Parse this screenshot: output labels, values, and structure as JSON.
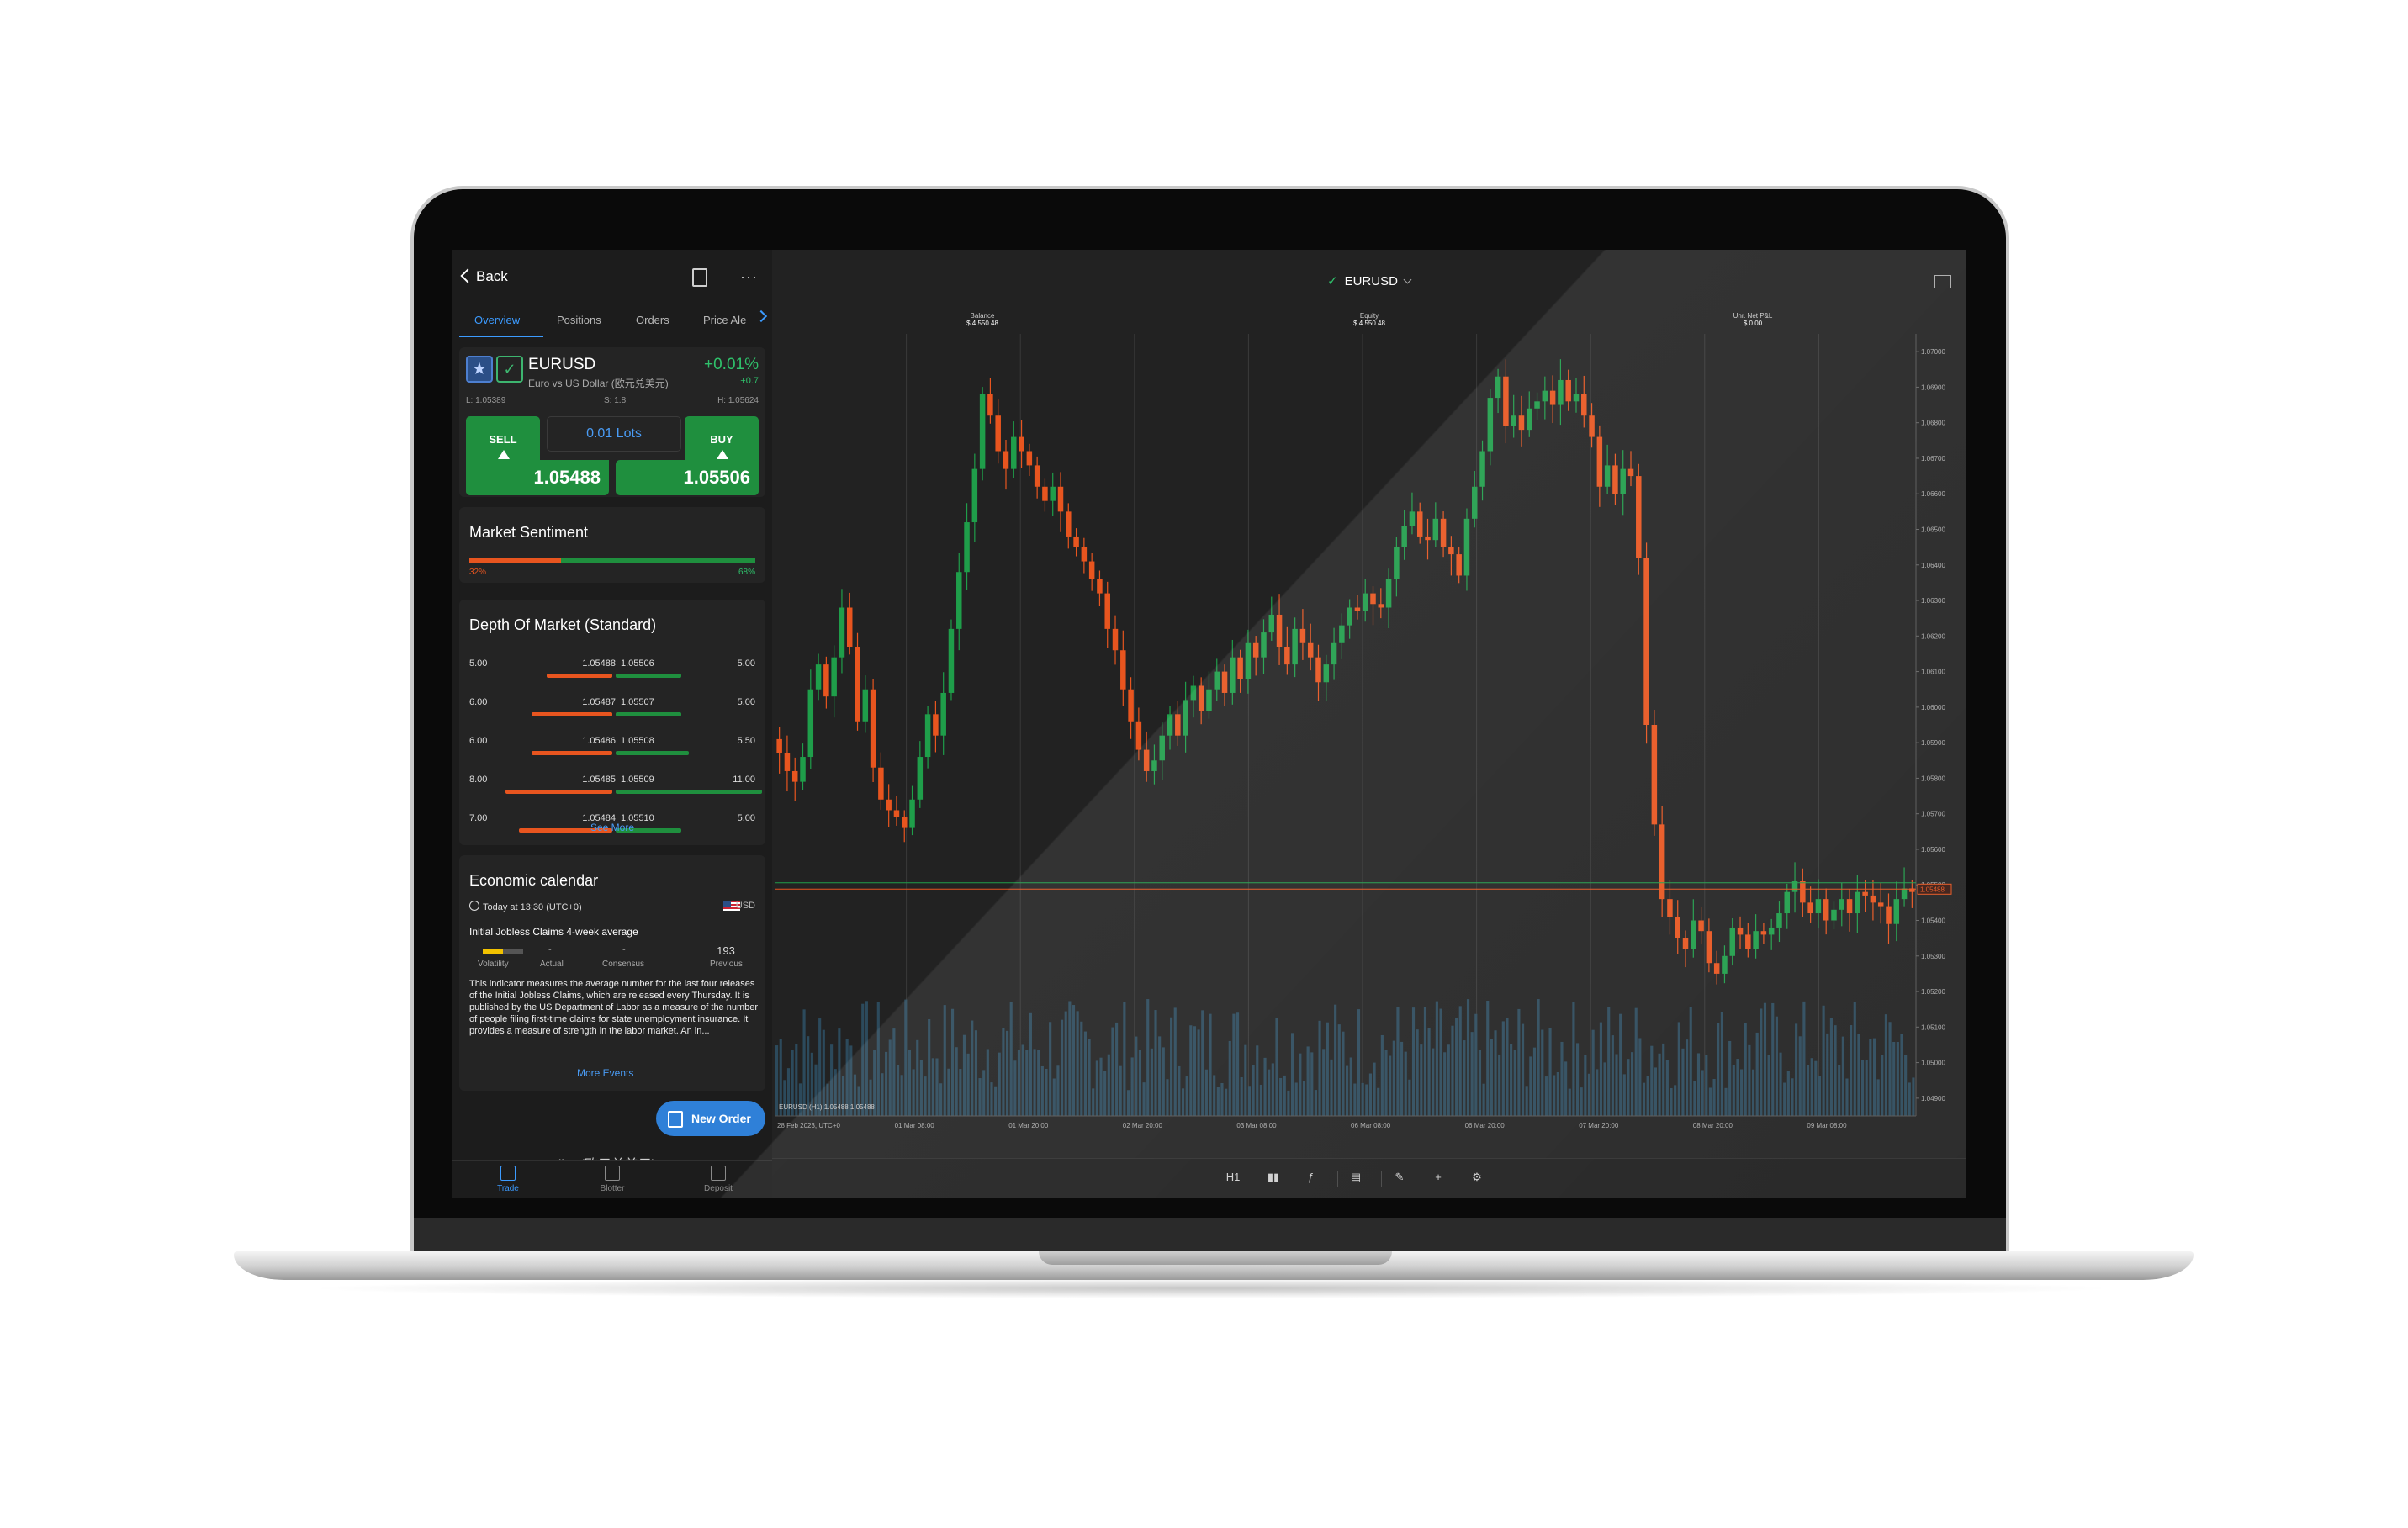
{
  "left": {
    "back_label": "Back",
    "tabs": [
      "Overview",
      "Positions",
      "Orders",
      "Price Ale"
    ],
    "symbol": {
      "name": "EURUSD",
      "description": "Euro vs US Dollar (欧元兑美元)",
      "change_pct": "+0.01%",
      "change_pts": "+0.7",
      "low": "L: 1.05389",
      "spread": "S: 1.8",
      "high": "H: 1.05624"
    },
    "trade": {
      "sell_label": "SELL",
      "buy_label": "BUY",
      "lots": "0.01 Lots",
      "sell_price": "1.05488",
      "buy_price": "1.05506"
    },
    "sentiment": {
      "title": "Market Sentiment",
      "sell_pct_label": "32%",
      "buy_pct_label": "68%",
      "sell_fraction": 0.32
    },
    "depth": {
      "title": "Depth Of Market (Standard)",
      "rows": [
        {
          "bid_qty": "5.00",
          "bid": "1.05488",
          "ask": "1.05506",
          "ask_qty": "5.00",
          "bid_w": 0.45,
          "ask_w": 0.45
        },
        {
          "bid_qty": "6.00",
          "bid": "1.05487",
          "ask": "1.05507",
          "ask_qty": "5.00",
          "bid_w": 0.55,
          "ask_w": 0.45
        },
        {
          "bid_qty": "6.00",
          "bid": "1.05486",
          "ask": "1.05508",
          "ask_qty": "5.50",
          "bid_w": 0.55,
          "ask_w": 0.5
        },
        {
          "bid_qty": "8.00",
          "bid": "1.05485",
          "ask": "1.05509",
          "ask_qty": "11.00",
          "bid_w": 0.73,
          "ask_w": 1.0
        },
        {
          "bid_qty": "7.00",
          "bid": "1.05484",
          "ask": "1.05510",
          "ask_qty": "5.00",
          "bid_w": 0.64,
          "ask_w": 0.45
        }
      ],
      "see_more": "See More"
    },
    "econ": {
      "title": "Economic calendar",
      "time": "Today at 13:30 (UTC+0)",
      "currency": "USD",
      "event": "Initial Jobless Claims 4-week average",
      "actual": "-",
      "consensus": "-",
      "previous": "193",
      "labels": [
        "Volatility",
        "Actual",
        "Consensus",
        "Previous"
      ],
      "description": "This indicator measures the average number for the last four releases of the Initial Jobless Claims, which are released every Thursday. It is published by the US Department of Labor as a measure of the number of people filing first-time claims for state unemployment insurance. It provides a measure of strength in the labor market. An in...",
      "more_events": "More Events"
    },
    "new_order": "New Order",
    "peek_text": "Euro vs US Dollar (欧元兑美元)",
    "nav": [
      "Trade",
      "Blotter",
      "Deposit"
    ]
  },
  "chart_header": {
    "symbol": "EURUSD",
    "balance_label": "Balance",
    "balance": "$ 4 550.48",
    "equity_label": "Equity",
    "equity": "$ 4 550.48",
    "pnl_label": "Unr. Net P&L",
    "pnl": "$ 0.00"
  },
  "chart_tools": {
    "timeframe": "H1"
  },
  "colors": {
    "up": "#1f9e4a",
    "down": "#e8551f",
    "accent": "#3c9bff",
    "bg": "#222222"
  },
  "chart_data": {
    "type": "candlestick",
    "symbol": "EURUSD",
    "timeframe": "H1",
    "legend": "EURUSD (H1) 1.05488 1.05488",
    "y_ticks": [
      "1.07000",
      "1.06900",
      "1.06800",
      "1.06700",
      "1.06600",
      "1.06500",
      "1.06400",
      "1.06300",
      "1.06200",
      "1.06100",
      "1.06000",
      "1.05900",
      "1.05800",
      "1.05700",
      "1.05600",
      "1.05500",
      "1.05400",
      "1.05300",
      "1.05200",
      "1.05100",
      "1.05000",
      "1.04900"
    ],
    "ylim": [
      1.0485,
      1.0705
    ],
    "x_labels": [
      "28 Feb 2023, UTC+0",
      "01 Mar 08:00",
      "01 Mar 20:00",
      "02 Mar 20:00",
      "03 Mar 08:00",
      "06 Mar 08:00",
      "06 Mar 20:00",
      "07 Mar 20:00",
      "08 Mar 20:00",
      "09 Mar 08:00"
    ],
    "bid_line": 1.05488,
    "ask_line": 1.05506,
    "price_tag": "1.05488",
    "close_path": [
      1.0587,
      1.0582,
      1.0579,
      1.0586,
      1.0605,
      1.0612,
      1.0603,
      1.0614,
      1.0628,
      1.0617,
      1.0596,
      1.0605,
      1.0583,
      1.0574,
      1.0571,
      1.0569,
      1.0566,
      1.0574,
      1.0586,
      1.0598,
      1.0592,
      1.0604,
      1.0622,
      1.0638,
      1.0652,
      1.0667,
      1.0688,
      1.0682,
      1.0672,
      1.0667,
      1.0676,
      1.0672,
      1.0668,
      1.0662,
      1.0658,
      1.0662,
      1.0655,
      1.0648,
      1.0645,
      1.0641,
      1.0636,
      1.0632,
      1.0622,
      1.0616,
      1.0605,
      1.0596,
      1.0588,
      1.0582,
      1.0585,
      1.0592,
      1.0598,
      1.0592,
      1.0602,
      1.0606,
      1.0599,
      1.0605,
      1.061,
      1.0604,
      1.0614,
      1.0608,
      1.0618,
      1.0614,
      1.0621,
      1.0626,
      1.0617,
      1.0612,
      1.0622,
      1.0618,
      1.0614,
      1.0607,
      1.0612,
      1.0618,
      1.0623,
      1.0628,
      1.0627,
      1.0632,
      1.0629,
      1.0628,
      1.0636,
      1.0645,
      1.0651,
      1.0655,
      1.0648,
      1.0647,
      1.0653,
      1.0645,
      1.0643,
      1.0637,
      1.0653,
      1.0662,
      1.0672,
      1.0687,
      1.0693,
      1.0679,
      1.0682,
      1.0678,
      1.0684,
      1.0686,
      1.0689,
      1.0685,
      1.0692,
      1.0686,
      1.0688,
      1.0682,
      1.0676,
      1.0662,
      1.0668,
      1.066,
      1.0667,
      1.0665,
      1.0642,
      1.0595,
      1.0567,
      1.0546,
      1.0541,
      1.0535,
      1.0532,
      1.054,
      1.0537,
      1.0528,
      1.0525,
      1.053,
      1.0538,
      1.0536,
      1.0532,
      1.0537,
      1.0536,
      1.0538,
      1.0542,
      1.0548,
      1.0551,
      1.0545,
      1.0542,
      1.0546,
      1.054,
      1.0543,
      1.0546,
      1.0542,
      1.0548,
      1.0547,
      1.0545,
      1.0544,
      1.0539,
      1.0546,
      1.0549,
      1.0548
    ]
  }
}
